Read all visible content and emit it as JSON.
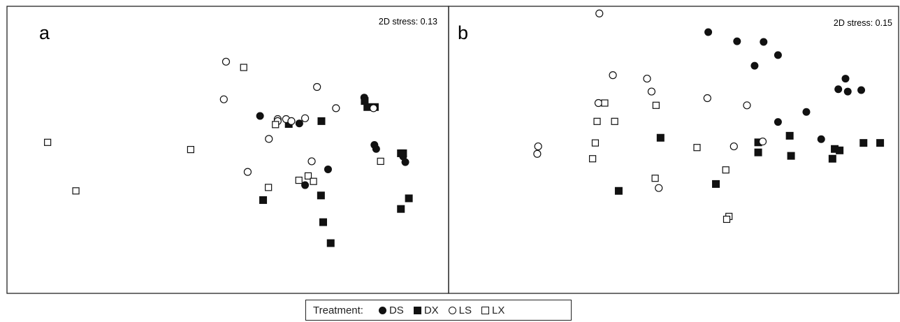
{
  "chart_data": [
    {
      "type": "scatter",
      "panel_label": "a",
      "annotation": "2D stress: 0.13",
      "xlim": [
        0,
        100
      ],
      "ylim": [
        0,
        100
      ],
      "series": [
        {
          "name": "DS",
          "marker": "filled-circle",
          "points": [
            [
              80.9,
              68.2
            ],
            [
              57.3,
              61.8
            ],
            [
              66.2,
              59.2
            ],
            [
              83.2,
              51.7
            ],
            [
              83.6,
              50.3
            ],
            [
              89.7,
              47.7
            ],
            [
              90.2,
              45.7
            ],
            [
              72.7,
              43.2
            ],
            [
              67.5,
              37.7
            ]
          ]
        },
        {
          "name": "DX",
          "marker": "filled-square",
          "points": [
            [
              81.0,
              67.0
            ],
            [
              81.6,
              64.9
            ],
            [
              83.3,
              64.9
            ],
            [
              71.2,
              60.0
            ],
            [
              63.8,
              59.0
            ],
            [
              89.2,
              48.8
            ],
            [
              89.7,
              48.8
            ],
            [
              71.1,
              34.1
            ],
            [
              91.0,
              33.1
            ],
            [
              58.0,
              32.5
            ],
            [
              89.2,
              29.4
            ],
            [
              71.6,
              24.8
            ],
            [
              73.3,
              17.5
            ]
          ]
        },
        {
          "name": "LS",
          "marker": "open-circle",
          "points": [
            [
              49.6,
              80.7
            ],
            [
              70.2,
              71.9
            ],
            [
              49.1,
              67.6
            ],
            [
              74.5,
              64.5
            ],
            [
              83.0,
              64.5
            ],
            [
              61.3,
              60.7
            ],
            [
              63.2,
              60.7
            ],
            [
              67.5,
              61.0
            ],
            [
              61.3,
              60.0
            ],
            [
              64.4,
              60.0
            ],
            [
              59.3,
              53.8
            ],
            [
              69.0,
              46.0
            ],
            [
              54.5,
              42.3
            ]
          ]
        },
        {
          "name": "LX",
          "marker": "open-square",
          "points": [
            [
              53.6,
              78.7
            ],
            [
              60.8,
              58.8
            ],
            [
              9.2,
              52.6
            ],
            [
              41.6,
              50.1
            ],
            [
              84.6,
              46.0
            ],
            [
              68.2,
              40.9
            ],
            [
              66.1,
              39.4
            ],
            [
              69.4,
              39.0
            ],
            [
              59.2,
              36.9
            ],
            [
              15.6,
              35.7
            ]
          ]
        }
      ]
    },
    {
      "type": "scatter",
      "panel_label": "b",
      "annotation": "2D stress: 0.15",
      "xlim": [
        0,
        100
      ],
      "ylim": [
        0,
        100
      ],
      "series": [
        {
          "name": "DS",
          "marker": "filled-circle",
          "points": [
            [
              57.7,
              91.0
            ],
            [
              64.1,
              87.8
            ],
            [
              70.0,
              87.6
            ],
            [
              73.2,
              83.0
            ],
            [
              68.0,
              79.3
            ],
            [
              88.2,
              74.8
            ],
            [
              86.6,
              71.1
            ],
            [
              91.7,
              70.8
            ],
            [
              88.7,
              70.3
            ],
            [
              79.5,
              63.2
            ],
            [
              73.2,
              59.7
            ],
            [
              82.8,
              53.7
            ]
          ]
        },
        {
          "name": "DX",
          "marker": "filled-square",
          "points": [
            [
              47.1,
              54.2
            ],
            [
              75.8,
              54.9
            ],
            [
              68.8,
              52.6
            ],
            [
              92.2,
              52.4
            ],
            [
              95.9,
              52.4
            ],
            [
              85.8,
              50.3
            ],
            [
              86.9,
              49.8
            ],
            [
              68.8,
              49.1
            ],
            [
              76.1,
              47.9
            ],
            [
              85.3,
              46.9
            ],
            [
              59.4,
              38.1
            ],
            [
              37.8,
              35.7
            ]
          ]
        },
        {
          "name": "LS",
          "marker": "open-circle",
          "points": [
            [
              33.5,
              97.5
            ],
            [
              36.5,
              76.0
            ],
            [
              44.1,
              74.8
            ],
            [
              45.1,
              70.3
            ],
            [
              57.5,
              68.0
            ],
            [
              33.3,
              66.3
            ],
            [
              66.3,
              65.5
            ],
            [
              19.9,
              51.2
            ],
            [
              63.4,
              51.2
            ],
            [
              69.8,
              52.9
            ],
            [
              19.7,
              48.6
            ],
            [
              46.7,
              36.7
            ]
          ]
        },
        {
          "name": "LX",
          "marker": "open-square",
          "points": [
            [
              34.7,
              66.3
            ],
            [
              46.1,
              65.5
            ],
            [
              33.0,
              59.9
            ],
            [
              36.9,
              59.9
            ],
            [
              32.6,
              52.4
            ],
            [
              55.2,
              50.8
            ],
            [
              32.0,
              46.9
            ],
            [
              61.6,
              43.0
            ],
            [
              45.9,
              40.1
            ],
            [
              62.3,
              26.8
            ],
            [
              61.8,
              25.8
            ]
          ]
        }
      ]
    }
  ],
  "legend": {
    "title": "Treatment:",
    "items": [
      {
        "label": "DS",
        "marker": "filled-circle"
      },
      {
        "label": "DX",
        "marker": "filled-square"
      },
      {
        "label": "LS",
        "marker": "open-circle"
      },
      {
        "label": "LX",
        "marker": "open-square"
      }
    ]
  },
  "colors": {
    "marker": "#111111",
    "frame": "#222222",
    "background": "#ffffff"
  }
}
